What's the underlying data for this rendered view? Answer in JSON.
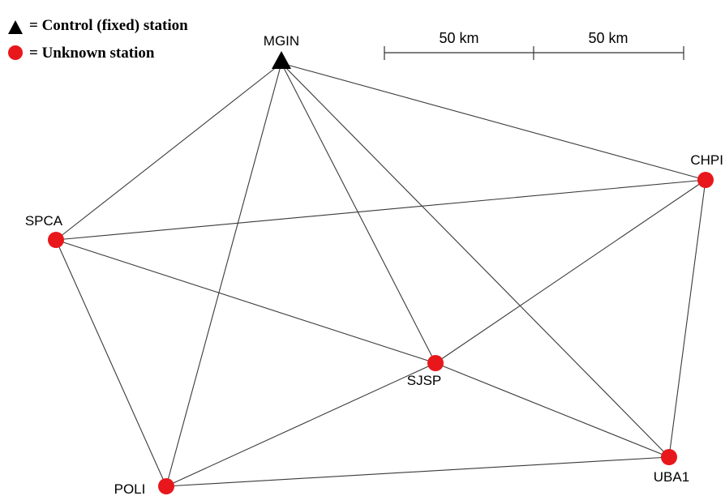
{
  "legend": {
    "control_text": "= Control (fixed) station",
    "unknown_text": "= Unknown station",
    "control_icon": "triangle-icon",
    "unknown_icon": "circle-icon"
  },
  "scale_bar": {
    "segment_labels": [
      "50 km",
      "50 km"
    ]
  },
  "colors": {
    "control": "#000000",
    "unknown": "#e8171b",
    "line": "#3a3a3a"
  },
  "stations": [
    {
      "id": "MGIN",
      "label": "MGIN",
      "type": "control"
    },
    {
      "id": "CHPI",
      "label": "CHPI",
      "type": "unknown"
    },
    {
      "id": "SPCA",
      "label": "SPCA",
      "type": "unknown"
    },
    {
      "id": "SJSP",
      "label": "SJSP",
      "type": "unknown"
    },
    {
      "id": "UBA1",
      "label": "UBA1",
      "type": "unknown"
    },
    {
      "id": "POLI",
      "label": "POLI",
      "type": "unknown"
    }
  ],
  "baselines": [
    [
      "MGIN",
      "SPCA"
    ],
    [
      "MGIN",
      "CHPI"
    ],
    [
      "MGIN",
      "POLI"
    ],
    [
      "MGIN",
      "SJSP"
    ],
    [
      "MGIN",
      "UBA1"
    ],
    [
      "SPCA",
      "CHPI"
    ],
    [
      "SPCA",
      "SJSP"
    ],
    [
      "SPCA",
      "POLI"
    ],
    [
      "CHPI",
      "SJSP"
    ],
    [
      "CHPI",
      "UBA1"
    ],
    [
      "SJSP",
      "POLI"
    ],
    [
      "SJSP",
      "UBA1"
    ],
    [
      "POLI",
      "UBA1"
    ]
  ]
}
